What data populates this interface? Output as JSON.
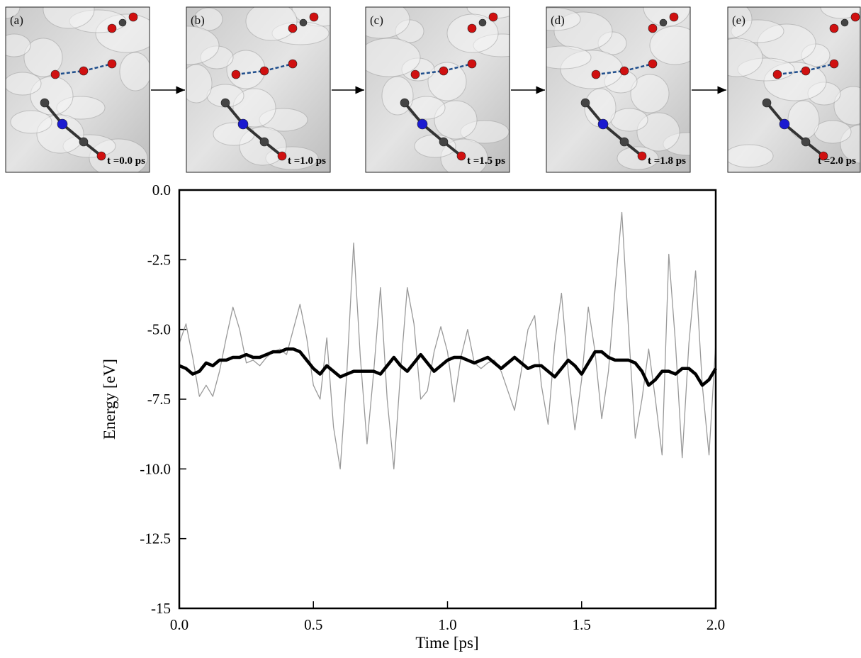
{
  "panels": [
    {
      "label": "(a)",
      "time": "t =0.0 ps"
    },
    {
      "label": "(b)",
      "time": "t =1.0 ps"
    },
    {
      "label": "(c)",
      "time": "t =1.5 ps"
    },
    {
      "label": "(d)",
      "time": "t =1.8 ps"
    },
    {
      "label": "(e)",
      "time": "t =2.0 ps"
    }
  ],
  "chart_data": {
    "type": "line",
    "x_label": "Time [ps]",
    "y_label": "Energy [eV]",
    "x": [
      0,
      0.025,
      0.05,
      0.075,
      0.1,
      0.125,
      0.15,
      0.175,
      0.2,
      0.225,
      0.25,
      0.275,
      0.3,
      0.325,
      0.35,
      0.375,
      0.4,
      0.425,
      0.45,
      0.475,
      0.5,
      0.525,
      0.55,
      0.575,
      0.6,
      0.625,
      0.65,
      0.675,
      0.7,
      0.725,
      0.75,
      0.775,
      0.8,
      0.825,
      0.85,
      0.875,
      0.9,
      0.925,
      0.95,
      0.975,
      1.0,
      1.025,
      1.05,
      1.075,
      1.1,
      1.125,
      1.15,
      1.175,
      1.2,
      1.225,
      1.25,
      1.275,
      1.3,
      1.325,
      1.35,
      1.375,
      1.4,
      1.425,
      1.45,
      1.475,
      1.5,
      1.525,
      1.55,
      1.575,
      1.6,
      1.625,
      1.65,
      1.675,
      1.7,
      1.725,
      1.75,
      1.775,
      1.8,
      1.825,
      1.85,
      1.875,
      1.9,
      1.925,
      1.95,
      1.975,
      2.0
    ],
    "series": [
      {
        "color": "#999999",
        "values": [
          -5.5,
          -4.8,
          -6.0,
          -7.4,
          -7.0,
          -7.4,
          -6.5,
          -5.3,
          -4.2,
          -5.0,
          -6.2,
          -6.1,
          -6.3,
          -6.0,
          -5.8,
          -5.7,
          -5.9,
          -5.0,
          -4.1,
          -5.3,
          -7.0,
          -7.5,
          -5.3,
          -8.5,
          -10.0,
          -6.5,
          -1.9,
          -6.0,
          -9.1,
          -6.5,
          -3.5,
          -7.5,
          -10.0,
          -6.5,
          -3.5,
          -4.8,
          -7.5,
          -7.2,
          -5.8,
          -4.9,
          -5.8,
          -7.6,
          -6.0,
          -5.0,
          -6.2,
          -6.4,
          -6.2,
          -6.1,
          -6.5,
          -7.2,
          -7.9,
          -6.5,
          -5.0,
          -4.5,
          -7.0,
          -8.4,
          -5.5,
          -3.7,
          -6.5,
          -8.6,
          -6.8,
          -4.2,
          -5.8,
          -8.2,
          -6.5,
          -3.5,
          -0.8,
          -5.0,
          -8.9,
          -7.5,
          -5.7,
          -7.5,
          -9.5,
          -2.3,
          -5.5,
          -9.6,
          -5.5,
          -2.9,
          -7.0,
          -9.5,
          -5.5
        ]
      },
      {
        "color": "#000000",
        "values": [
          -6.3,
          -6.4,
          -6.6,
          -6.5,
          -6.2,
          -6.3,
          -6.1,
          -6.1,
          -6.0,
          -6.0,
          -5.9,
          -6.0,
          -6.0,
          -5.9,
          -5.8,
          -5.8,
          -5.7,
          -5.7,
          -5.8,
          -6.1,
          -6.4,
          -6.6,
          -6.3,
          -6.5,
          -6.7,
          -6.6,
          -6.5,
          -6.5,
          -6.5,
          -6.5,
          -6.6,
          -6.3,
          -6.0,
          -6.3,
          -6.5,
          -6.2,
          -5.9,
          -6.2,
          -6.5,
          -6.3,
          -6.1,
          -6.0,
          -6.0,
          -6.1,
          -6.2,
          -6.1,
          -6.0,
          -6.2,
          -6.4,
          -6.2,
          -6.0,
          -6.2,
          -6.4,
          -6.3,
          -6.3,
          -6.5,
          -6.7,
          -6.4,
          -6.1,
          -6.3,
          -6.6,
          -6.2,
          -5.8,
          -5.8,
          -6.0,
          -6.1,
          -6.1,
          -6.1,
          -6.2,
          -6.5,
          -7.0,
          -6.8,
          -6.5,
          -6.5,
          -6.6,
          -6.4,
          -6.4,
          -6.6,
          -7.0,
          -6.8,
          -6.4
        ]
      }
    ],
    "xlim": [
      0,
      2.0
    ],
    "xticks": [
      {
        "value": 0,
        "label": "0.0"
      },
      0.5,
      {
        "value": 1,
        "label": "1.0"
      },
      1.5,
      {
        "value": 2,
        "label": "2.0"
      }
    ],
    "ylim": [
      -15,
      0
    ],
    "yticks": [
      {
        "value": 0,
        "label": "0.0"
      },
      -2.5,
      {
        "value": -5,
        "label": "-5.0"
      },
      -7.5,
      {
        "value": -10,
        "label": "-10.0"
      },
      -12.5,
      -15
    ]
  }
}
